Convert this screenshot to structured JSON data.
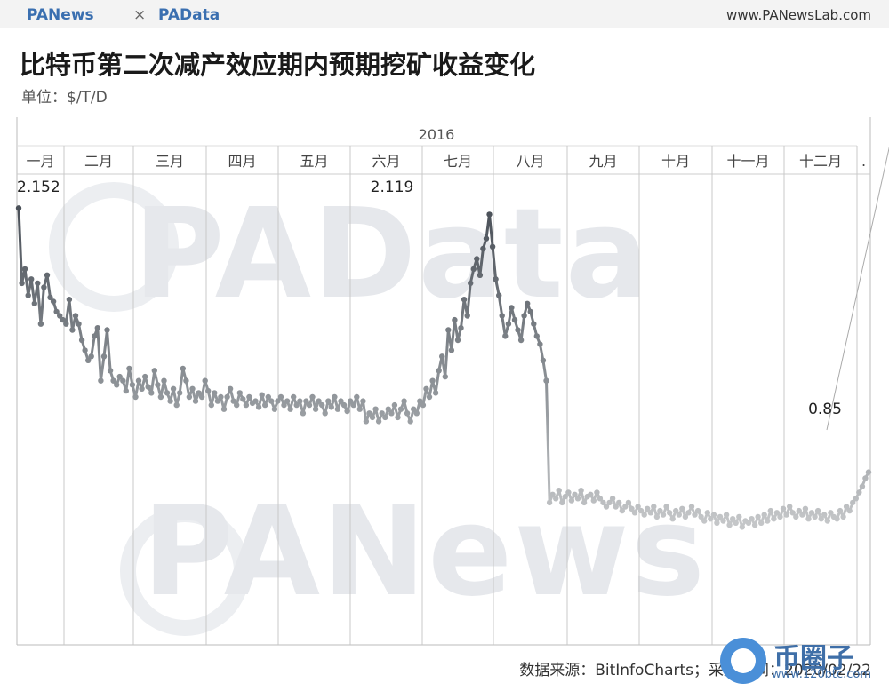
{
  "header": {
    "brand_left": "PANews",
    "separator": "×",
    "brand_right": "PAData",
    "site_url": "www.PANewsLab.com"
  },
  "title": "比特币第二次减产效应期内预期挖矿收益变化",
  "unit_label": "单位：$/T/D",
  "source_label": "数据来源：BitInfoCharts；采集时间：2020/02/22",
  "watermarks": {
    "top": "PAData",
    "bottom": "PANews"
  },
  "corner_logo": {
    "text": "币圈子",
    "url": "www.120btc.com"
  },
  "colors": {
    "line_dark": "#4a5058",
    "line_mid": "#8c9196",
    "line_light": "#c4c6c8",
    "axis": "#999999"
  },
  "chart_data": {
    "type": "line",
    "year_label": "2016",
    "months": [
      "一月",
      "二月",
      "三月",
      "四月",
      "五月",
      "六月",
      "七月",
      "八月",
      "九月",
      "十月",
      "十一月",
      "十二月",
      "."
    ],
    "series": [
      {
        "values": [
          2.15,
          1.78,
          1.85,
          1.72,
          1.8,
          1.68,
          1.78,
          1.58,
          1.76,
          1.82,
          1.71,
          1.69,
          1.64,
          1.62,
          1.6,
          1.58,
          1.7,
          1.55,
          1.62,
          1.58,
          1.5,
          1.45,
          1.4,
          1.42,
          1.52,
          1.56,
          1.3,
          1.42,
          1.55,
          1.35,
          1.3,
          1.28,
          1.32,
          1.3,
          1.25,
          1.36,
          1.28,
          1.22,
          1.3,
          1.26,
          1.32,
          1.27,
          1.24,
          1.35,
          1.28,
          1.22,
          1.3,
          1.24,
          1.2,
          1.26,
          1.18,
          1.24,
          1.36,
          1.3,
          1.22,
          1.26,
          1.2,
          1.24,
          1.22,
          1.3,
          1.25,
          1.18,
          1.24,
          1.2,
          1.22,
          1.16,
          1.22,
          1.26,
          1.2,
          1.18,
          1.24,
          1.21,
          1.18,
          1.22,
          1.19,
          1.2,
          1.17,
          1.23,
          1.18,
          1.22,
          1.2,
          1.16,
          1.2,
          1.22,
          1.18,
          1.2,
          1.16,
          1.22,
          1.18,
          1.2,
          1.14,
          1.2,
          1.18,
          1.22,
          1.16,
          1.2,
          1.18,
          1.14,
          1.2,
          1.17,
          1.22,
          1.16,
          1.2,
          1.18,
          1.15,
          1.2,
          1.18,
          1.22,
          1.16,
          1.2,
          1.1,
          1.14,
          1.12,
          1.16,
          1.1,
          1.14,
          1.12,
          1.16,
          1.14,
          1.18,
          1.12,
          1.16,
          1.2,
          1.14,
          1.1,
          1.16,
          1.14,
          1.2,
          1.18,
          1.26,
          1.22,
          1.3,
          1.24,
          1.35,
          1.42,
          1.32,
          1.55,
          1.45,
          1.6,
          1.5,
          1.56,
          1.7,
          1.62,
          1.78,
          1.85,
          1.9,
          1.82,
          1.95,
          2.0,
          2.119,
          1.96,
          1.8,
          1.72,
          1.62,
          1.52,
          1.58,
          1.66,
          1.6,
          1.55,
          1.5,
          1.62,
          1.68,
          1.64,
          1.58,
          1.52,
          1.48,
          1.4,
          1.3,
          0.7,
          0.74,
          0.72,
          0.76,
          0.7,
          0.73,
          0.75,
          0.71,
          0.74,
          0.72,
          0.76,
          0.7,
          0.73,
          0.74,
          0.71,
          0.75,
          0.72,
          0.7,
          0.68,
          0.7,
          0.72,
          0.68,
          0.7,
          0.66,
          0.68,
          0.7,
          0.67,
          0.65,
          0.68,
          0.66,
          0.64,
          0.67,
          0.65,
          0.68,
          0.63,
          0.66,
          0.64,
          0.68,
          0.65,
          0.62,
          0.66,
          0.64,
          0.67,
          0.63,
          0.65,
          0.68,
          0.64,
          0.66,
          0.63,
          0.61,
          0.65,
          0.62,
          0.64,
          0.6,
          0.63,
          0.61,
          0.64,
          0.59,
          0.62,
          0.6,
          0.63,
          0.58,
          0.61,
          0.6,
          0.62,
          0.59,
          0.63,
          0.6,
          0.64,
          0.61,
          0.66,
          0.62,
          0.65,
          0.63,
          0.67,
          0.64,
          0.68,
          0.65,
          0.63,
          0.66,
          0.64,
          0.67,
          0.62,
          0.65,
          0.63,
          0.66,
          0.62,
          0.64,
          0.61,
          0.65,
          0.63,
          0.62,
          0.66,
          0.63,
          0.68,
          0.66,
          0.7,
          0.72,
          0.75,
          0.78,
          0.82,
          0.85
        ]
      }
    ],
    "annotations": [
      {
        "label": "2.152",
        "index": 0
      },
      {
        "label": "2.119",
        "index": 151
      },
      {
        "label": "0.85",
        "index": 287
      }
    ],
    "ylim": [
      0,
      2.3
    ],
    "grid": "vertical month separators"
  }
}
